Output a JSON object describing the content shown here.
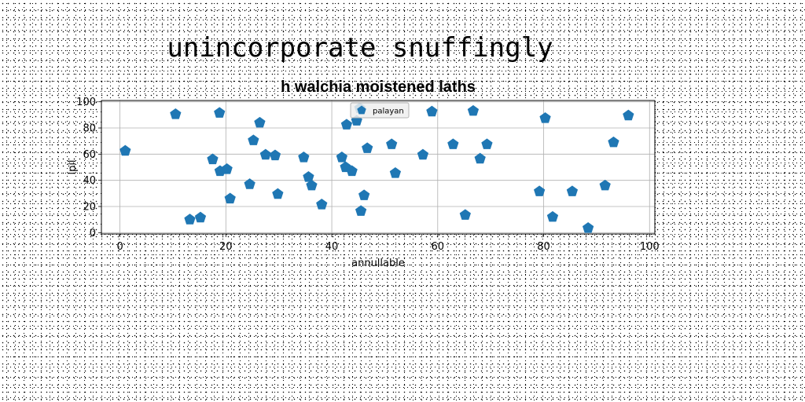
{
  "figure_title": "unincorporate snuffingly",
  "chart_data": {
    "type": "scatter",
    "title": "h walchia moistened laths",
    "xlabel": "annullable",
    "ylabel": "ipil",
    "xlim": [
      -3.5,
      101
    ],
    "ylim": [
      -1,
      101
    ],
    "xticks": [
      "0",
      "20",
      "40",
      "60",
      "80",
      "100"
    ],
    "yticks": [
      "0",
      "20",
      "40",
      "60",
      "80",
      "100"
    ],
    "grid": true,
    "legend_position": "top-center",
    "marker": "pentagon",
    "color": "#1f77b4",
    "series": [
      {
        "name": "palayan",
        "x": [
          1,
          10.5,
          13.2,
          15.2,
          17.5,
          18.8,
          18.9,
          20.2,
          20.8,
          24.5,
          25.2,
          26.4,
          27.5,
          29.3,
          29.8,
          34.7,
          35.6,
          36.2,
          38.1,
          41.9,
          42.6,
          42.8,
          43.8,
          44.7,
          45.3,
          45.5,
          46.1,
          46.7,
          51.3,
          52.0,
          57.2,
          58.9,
          62.9,
          65.2,
          66.7,
          68.0,
          69.3,
          79.2,
          80.3,
          81.7,
          85.4,
          88.4,
          91.6,
          93.2,
          96.0
        ],
        "y": [
          62.5,
          90.5,
          10,
          11.5,
          56,
          91.5,
          47,
          48.5,
          26,
          37,
          70.5,
          84,
          59.5,
          59,
          29.5,
          57.5,
          42.5,
          36,
          21.5,
          57.5,
          50,
          82.5,
          47,
          85.5,
          95,
          16.5,
          28.5,
          64.5,
          67.5,
          45.5,
          59.5,
          92.5,
          67.5,
          13.5,
          93,
          56.5,
          67.5,
          31.5,
          87.5,
          12,
          31.5,
          3.5,
          36,
          69,
          89.5
        ]
      }
    ]
  }
}
